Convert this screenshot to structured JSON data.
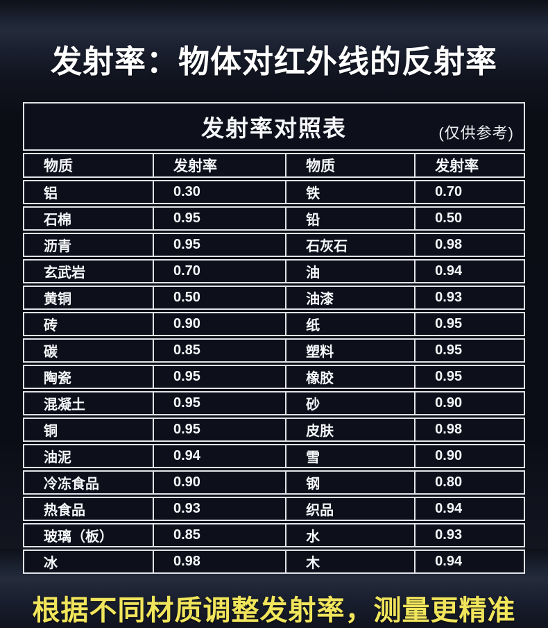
{
  "heading": "发射率：物体对红外线的反射率",
  "footer": "根据不同材质调整发射率，测量更精准",
  "colors": {
    "accent_yellow": "#f1e55c",
    "table_border": "#e2e3e8",
    "cell_background": "#0d101b",
    "page_background": "#0b0d15"
  },
  "chart_data": {
    "type": "table",
    "title": "发射率对照表",
    "note": "(仅供参考)",
    "columns": [
      "物质",
      "发射率",
      "物质",
      "发射率"
    ],
    "rows": [
      [
        "铝",
        "0.30",
        "铁",
        "0.70"
      ],
      [
        "石棉",
        "0.95",
        "铅",
        "0.50"
      ],
      [
        "沥青",
        "0.95",
        "石灰石",
        "0.98"
      ],
      [
        "玄武岩",
        "0.70",
        "油",
        "0.94"
      ],
      [
        "黄铜",
        "0.50",
        "油漆",
        "0.93"
      ],
      [
        "砖",
        "0.90",
        "纸",
        "0.95"
      ],
      [
        "碳",
        "0.85",
        "塑料",
        "0.95"
      ],
      [
        "陶瓷",
        "0.95",
        "橡胶",
        "0.95"
      ],
      [
        "混凝土",
        "0.95",
        "砂",
        "0.90"
      ],
      [
        "铜",
        "0.95",
        "皮肤",
        "0.98"
      ],
      [
        "油泥",
        "0.94",
        "雪",
        "0.90"
      ],
      [
        "冷冻食品",
        "0.90",
        "钢",
        "0.80"
      ],
      [
        "热食品",
        "0.93",
        "织品",
        "0.94"
      ],
      [
        "玻璃（板）",
        "0.85",
        "水",
        "0.93"
      ],
      [
        "冰",
        "0.98",
        "木",
        "0.94"
      ]
    ]
  }
}
